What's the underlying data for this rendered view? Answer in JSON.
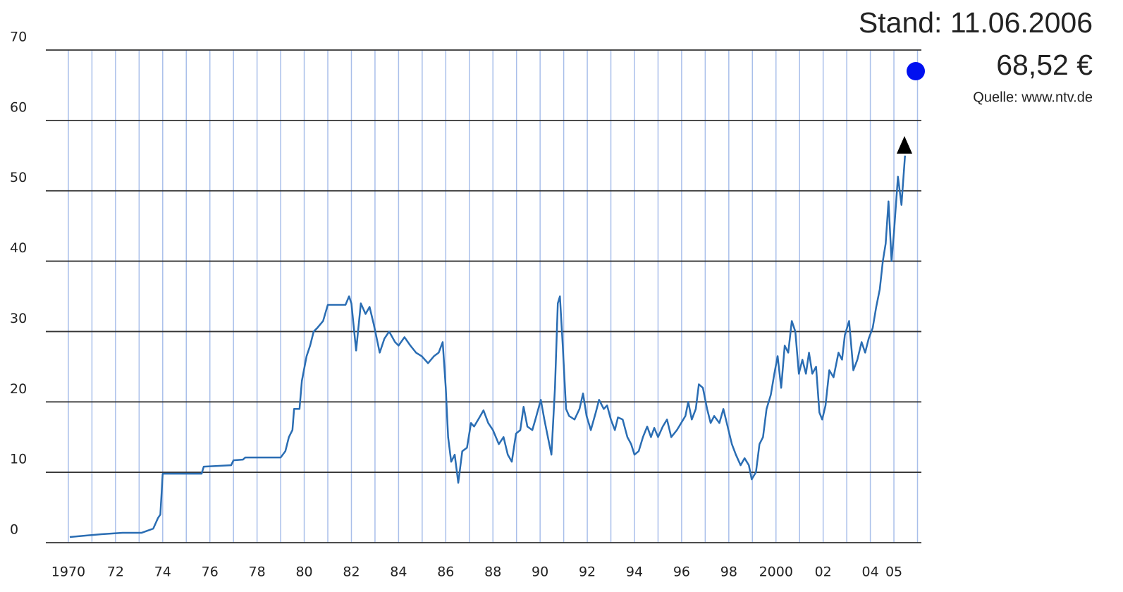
{
  "chart_data": {
    "type": "line",
    "annotations": [
      "Stand: 11.06.2006",
      "68,52 €",
      "Quelle: www.ntv.de"
    ],
    "xlim": [
      1969,
      2006.2
    ],
    "ylim": [
      0,
      70
    ],
    "yticks": [
      0,
      10,
      20,
      30,
      40,
      50,
      60,
      70
    ],
    "xticks": [
      1970,
      {
        "value": 1972,
        "label": "72"
      },
      {
        "value": 1974,
        "label": "74"
      },
      {
        "value": 1976,
        "label": "76"
      },
      {
        "value": 1978,
        "label": "78"
      },
      {
        "value": 1980,
        "label": "80"
      },
      {
        "value": 1982,
        "label": "82"
      },
      {
        "value": 1984,
        "label": "84"
      },
      {
        "value": 1986,
        "label": "86"
      },
      {
        "value": 1988,
        "label": "88"
      },
      {
        "value": 1990,
        "label": "90"
      },
      {
        "value": 1992,
        "label": "92"
      },
      {
        "value": 1994,
        "label": "94"
      },
      {
        "value": 1996,
        "label": "96"
      },
      {
        "value": 1998,
        "label": "98"
      },
      2000,
      {
        "value": 2002,
        "label": "02"
      },
      {
        "value": 2004,
        "label": "04"
      },
      {
        "value": 2005,
        "label": "05"
      }
    ],
    "xgrid": [
      1970,
      1971,
      1972,
      1973,
      1974,
      1975,
      1976,
      1977,
      1978,
      1979,
      1980,
      1981,
      1982,
      1983,
      1984,
      1985,
      1986,
      1987,
      1988,
      1989,
      1990,
      1991,
      1992,
      1993,
      1994,
      1995,
      1996,
      1997,
      1998,
      1999,
      2000,
      2001,
      2002,
      2003,
      2004,
      2005,
      2006
    ],
    "grid": true,
    "grid_color": "#333333",
    "xgrid_color": "#a9bfea",
    "series": [
      {
        "color": "#2a6db3",
        "x": [
          1970.06,
          1971.4,
          1972.3,
          1973.1,
          1973.6,
          1973.8,
          1973.9,
          1974.0,
          1975.65,
          1975.74,
          1976.9,
          1977.0,
          1977.4,
          1977.5,
          1979.0,
          1979.2,
          1979.35,
          1979.5,
          1979.57,
          1979.8,
          1979.9,
          1980.1,
          1980.25,
          1980.4,
          1980.55,
          1980.8,
          1981.0,
          1981.75,
          1981.9,
          1982.0,
          1982.2,
          1982.4,
          1982.6,
          1982.77,
          1982.95,
          1983.2,
          1983.4,
          1983.6,
          1983.85,
          1984.0,
          1984.25,
          1984.5,
          1984.74,
          1984.98,
          1985.25,
          1985.5,
          1985.7,
          1985.87,
          1986.0,
          1986.1,
          1986.23,
          1986.38,
          1986.53,
          1986.7,
          1986.9,
          1987.07,
          1987.2,
          1987.43,
          1987.6,
          1987.8,
          1988.0,
          1988.25,
          1988.45,
          1988.63,
          1988.8,
          1988.98,
          1989.16,
          1989.3,
          1989.46,
          1989.67,
          1989.8,
          1990.03,
          1990.18,
          1990.36,
          1990.48,
          1990.63,
          1990.75,
          1990.84,
          1990.96,
          1991.1,
          1991.23,
          1991.46,
          1991.67,
          1991.82,
          1991.97,
          1992.15,
          1992.36,
          1992.5,
          1992.7,
          1992.84,
          1993.0,
          1993.17,
          1993.3,
          1993.5,
          1993.7,
          1993.86,
          1994.0,
          1994.18,
          1994.36,
          1994.54,
          1994.7,
          1994.84,
          1995.0,
          1995.2,
          1995.38,
          1995.56,
          1995.8,
          1995.98,
          1996.16,
          1996.28,
          1996.43,
          1996.6,
          1996.73,
          1996.9,
          1997.08,
          1997.23,
          1997.38,
          1997.6,
          1997.77,
          1997.95,
          1998.13,
          1998.3,
          1998.5,
          1998.67,
          1998.85,
          1998.97,
          1999.15,
          1999.3,
          1999.45,
          1999.6,
          1999.78,
          1999.93,
          2000.07,
          2000.22,
          2000.37,
          2000.52,
          2000.67,
          2000.82,
          2000.97,
          2001.12,
          2001.27,
          2001.4,
          2001.54,
          2001.7,
          2001.84,
          2001.96,
          2002.1,
          2002.26,
          2002.44,
          2002.65,
          2002.8,
          2002.92,
          2003.1,
          2003.28,
          2003.45,
          2003.63,
          2003.78,
          2003.93,
          2004.1,
          2004.25,
          2004.4,
          2004.53,
          2004.65,
          2004.77,
          2004.9,
          2005.0,
          2005.17,
          2005.32,
          2005.47
        ],
        "values": [
          0.8,
          1.2,
          1.4,
          1.4,
          2.0,
          3.5,
          4.0,
          9.8,
          9.8,
          10.8,
          11.0,
          11.7,
          11.8,
          12.1,
          12.1,
          13.0,
          15.0,
          16.0,
          19.0,
          19.0,
          23.0,
          26.5,
          28.0,
          30.0,
          30.5,
          31.5,
          33.8,
          33.8,
          35.0,
          34.0,
          27.3,
          34.0,
          32.5,
          33.5,
          31.0,
          27.0,
          29.0,
          30.0,
          28.5,
          28.0,
          29.2,
          28.0,
          27.0,
          26.5,
          25.5,
          26.5,
          27.0,
          28.5,
          22.0,
          15.0,
          11.5,
          12.5,
          8.5,
          13.0,
          13.5,
          17.0,
          16.5,
          17.8,
          18.8,
          17.0,
          16.0,
          14.0,
          15.0,
          12.5,
          11.5,
          15.5,
          16.0,
          19.3,
          16.5,
          16.0,
          17.5,
          20.3,
          17.5,
          14.5,
          12.5,
          22.0,
          34.0,
          35.0,
          28.0,
          19.0,
          18.0,
          17.5,
          19.0,
          21.2,
          18.0,
          16.0,
          18.5,
          20.3,
          19.0,
          19.5,
          17.5,
          16.0,
          17.8,
          17.5,
          15.0,
          14.0,
          12.5,
          13.0,
          15.0,
          16.5,
          15.0,
          16.3,
          15.0,
          16.5,
          17.5,
          15.0,
          16.0,
          17.0,
          18.0,
          20.0,
          17.5,
          19.0,
          22.5,
          22.0,
          19.0,
          17.0,
          18.0,
          17.0,
          19.0,
          16.5,
          14.0,
          12.5,
          11.0,
          12.0,
          11.0,
          9.0,
          10.0,
          14.0,
          15.0,
          19.0,
          21.0,
          24.0,
          26.5,
          22.0,
          28.0,
          27.0,
          31.5,
          30.0,
          24.0,
          26.0,
          24.0,
          27.0,
          24.0,
          25.0,
          18.5,
          17.5,
          19.5,
          24.5,
          23.5,
          27.0,
          26.0,
          29.5,
          31.5,
          24.5,
          26.0,
          28.5,
          27.0,
          29.0,
          30.5,
          33.5,
          36.0,
          40.0,
          42.5,
          48.5,
          40.0,
          44.0,
          52.0,
          48.0,
          55.0
        ]
      }
    ]
  }
}
